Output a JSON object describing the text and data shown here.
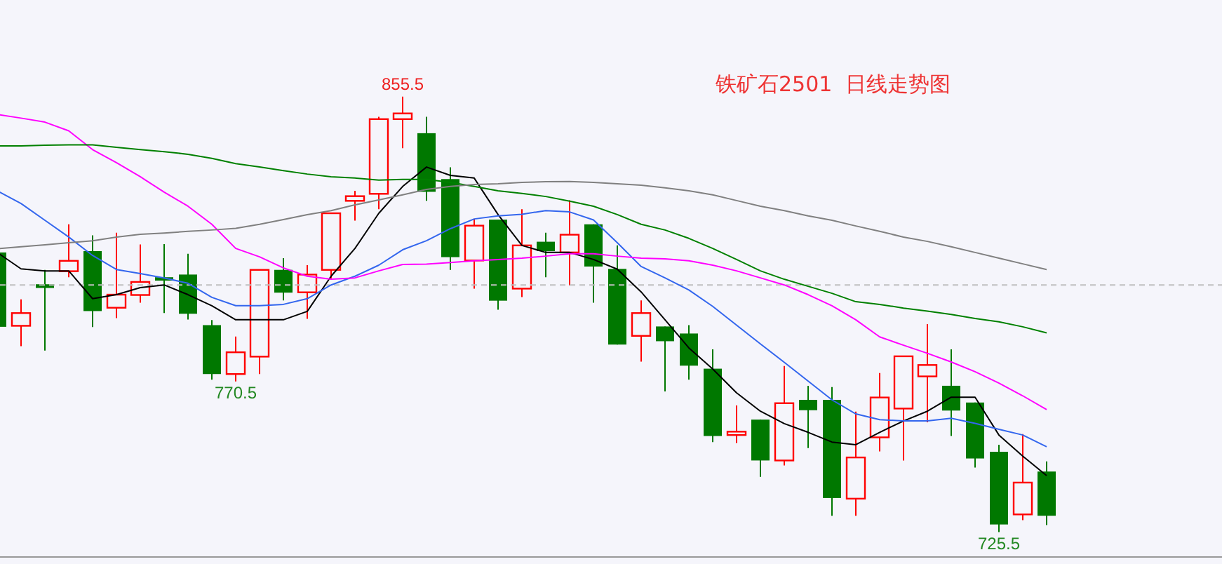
{
  "chart_data": {
    "type": "candlestick",
    "title": "铁矿石2501  日线走势图",
    "categories": [
      null,
      null,
      null,
      null,
      null,
      null,
      null,
      null,
      null,
      null,
      null,
      null,
      null,
      null,
      null,
      null,
      null,
      null,
      null,
      null,
      null,
      null,
      null,
      null,
      null,
      null,
      null,
      null,
      null,
      null,
      null,
      null,
      null,
      null,
      null,
      null,
      null,
      null,
      null,
      null,
      null,
      null,
      null,
      null,
      null
    ],
    "ohlc": [
      [
        809.0,
        809.8,
        786.0,
        786.8
      ],
      [
        787.1,
        795.0,
        781.0,
        790.9
      ],
      [
        799.5,
        803.8,
        779.7,
        798.4
      ],
      [
        803.4,
        817.4,
        801.6,
        806.5
      ],
      [
        809.4,
        814.1,
        786.7,
        791.5
      ],
      [
        792.5,
        814.9,
        789.4,
        796.4
      ],
      [
        796.3,
        811.4,
        794.0,
        800.2
      ],
      [
        801.6,
        811.5,
        790.9,
        800.6
      ],
      [
        802.4,
        808.6,
        789.0,
        790.7
      ],
      [
        787.3,
        788.8,
        771.0,
        772.7
      ],
      [
        772.7,
        783.9,
        770.5,
        779.2
      ],
      [
        777.9,
        803.8,
        772.7,
        803.8
      ],
      [
        803.8,
        807.3,
        794.7,
        797.0
      ],
      [
        797.1,
        805.2,
        789.2,
        802.4
      ],
      [
        803.8,
        820.7,
        801.3,
        820.7
      ],
      [
        824.4,
        827.4,
        818.5,
        825.8
      ],
      [
        826.5,
        849.5,
        821.9,
        848.8
      ],
      [
        848.8,
        855.5,
        840.1,
        850.5
      ],
      [
        844.6,
        849.5,
        824.4,
        827.1
      ],
      [
        830.9,
        834.4,
        803.8,
        807.6
      ],
      [
        806.6,
        819.0,
        798.2,
        817.0
      ],
      [
        818.8,
        818.8,
        791.9,
        794.6
      ],
      [
        798.2,
        821.9,
        795.7,
        811.1
      ],
      [
        812.2,
        814.9,
        801.6,
        809.4
      ],
      [
        809.0,
        824.6,
        799.2,
        814.3
      ],
      [
        817.4,
        817.4,
        794.0,
        804.8
      ],
      [
        804.1,
        811.1,
        781.5,
        781.5
      ],
      [
        784.1,
        794.7,
        776.4,
        790.9
      ],
      [
        786.9,
        786.9,
        767.5,
        782.5
      ],
      [
        784.8,
        787.3,
        771.0,
        775.2
      ],
      [
        774.3,
        780.1,
        752.4,
        754.2
      ],
      [
        754.5,
        763.3,
        752.1,
        755.5
      ],
      [
        759.1,
        759.1,
        742.0,
        746.9
      ],
      [
        746.9,
        775.1,
        745.4,
        764.0
      ],
      [
        765.0,
        769.2,
        750.6,
        761.9
      ],
      [
        765.0,
        768.8,
        730.4,
        735.7
      ],
      [
        735.5,
        761.5,
        730.4,
        747.8
      ],
      [
        753.8,
        773.0,
        749.6,
        765.7
      ],
      [
        762.4,
        778.0,
        746.9,
        778.0
      ],
      [
        772.0,
        787.6,
        758.3,
        775.4
      ],
      [
        769.2,
        780.1,
        754.2,
        761.8
      ],
      [
        764.2,
        764.2,
        744.8,
        747.5
      ],
      [
        749.5,
        751.6,
        725.5,
        727.8
      ],
      [
        730.8,
        754.8,
        729.1,
        740.3
      ],
      [
        743.6,
        746.6,
        727.6,
        730.4
      ]
    ],
    "colors": [
      "#007800",
      "#ff0000",
      "#007800",
      "#ff0000",
      "#007800",
      "#ff0000",
      "#ff0000",
      "#007800",
      "#007800",
      "#007800",
      "#ff0000",
      "#ff0000",
      "#007800",
      "#ff0000",
      "#ff0000",
      "#ff0000",
      "#ff0000",
      "#ff0000",
      "#007800",
      "#007800",
      "#ff0000",
      "#007800",
      "#ff0000",
      "#007800",
      "#ff0000",
      "#007800",
      "#007800",
      "#ff0000",
      "#007800",
      "#007800",
      "#007800",
      "#ff0000",
      "#007800",
      "#ff0000",
      "#007800",
      "#007800",
      "#ff0000",
      "#ff0000",
      "#ff0000",
      "#ff0000",
      "#007800",
      "#007800",
      "#007800",
      "#ff0000",
      "#007800"
    ],
    "series": [
      {
        "type": "line",
        "color": "#000000",
        "values": [
          809.0,
          804.1,
          803.5,
          803.5,
          795.2,
          796.4,
          798.5,
          799.3,
          796.4,
          793.1,
          788.9,
          788.9,
          788.9,
          791.4,
          801.9,
          810.2,
          820.7,
          828.7,
          834.5,
          832.0,
          831.2,
          820.3,
          811.1,
          809.0,
          809.0,
          806.9,
          804.0,
          797.2,
          788.9,
          780.5,
          774.2,
          767.1,
          761.6,
          757.9,
          755.3,
          752.4,
          751.6,
          755.3,
          758.7,
          761.6,
          765.8,
          765.8,
          754.5,
          748.2,
          742.4
        ]
      },
      {
        "type": "line",
        "color": "#3366ee",
        "values": [
          827.4,
          823.6,
          818.6,
          813.6,
          808.1,
          803.9,
          802.7,
          801.4,
          799.8,
          795.6,
          793.1,
          793.1,
          793.5,
          795.2,
          799.3,
          801.9,
          805.2,
          809.8,
          812.5,
          816.1,
          819.0,
          819.9,
          820.4,
          821.5,
          821.1,
          818.7,
          811.9,
          804.8,
          801.4,
          797.8,
          792.9,
          787.3,
          781.7,
          776.2,
          770.6,
          765.0,
          760.8,
          759.1,
          758.7,
          758.7,
          759.5,
          758.0,
          756.2,
          754.5,
          751.0
        ]
      },
      {
        "type": "line",
        "color": "#ff00ff",
        "values": [
          850.2,
          849.1,
          847.9,
          845.3,
          839.7,
          835.8,
          831.6,
          827.0,
          822.8,
          817.4,
          810.2,
          807.7,
          804.4,
          801.9,
          801.0,
          801.4,
          803.5,
          805.4,
          805.5,
          806.0,
          806.5,
          806.9,
          807.3,
          807.9,
          808.6,
          808.6,
          807.9,
          807.3,
          807.1,
          806.5,
          805.2,
          803.5,
          801.4,
          799.3,
          796.4,
          793.1,
          788.9,
          783.8,
          781.3,
          778.9,
          776.3,
          773.4,
          770.0,
          766.2,
          762.1
        ]
      },
      {
        "type": "line",
        "color": "#008000",
        "values": [
          840.8,
          840.8,
          841.0,
          841.1,
          841.1,
          840.4,
          839.7,
          839.1,
          838.3,
          837.1,
          835.5,
          834.5,
          833.4,
          832.4,
          831.6,
          831.2,
          830.6,
          830.8,
          830.8,
          829.9,
          828.7,
          827.4,
          826.6,
          825.7,
          824.3,
          822.8,
          820.3,
          817.4,
          815.7,
          813.2,
          810.2,
          806.9,
          803.5,
          801.0,
          798.9,
          796.8,
          794.3,
          793.5,
          792.4,
          791.5,
          790.5,
          789.3,
          788.3,
          786.8,
          785.0
        ]
      },
      {
        "type": "line",
        "color": "#808080",
        "values": [
          810.1,
          810.7,
          811.3,
          811.9,
          812.5,
          813.6,
          814.4,
          814.8,
          815.3,
          815.7,
          816.2,
          817.4,
          818.8,
          820.3,
          821.5,
          823.2,
          824.7,
          826.2,
          827.8,
          828.7,
          829.3,
          829.5,
          829.9,
          830.1,
          830.2,
          829.9,
          829.5,
          829.1,
          828.3,
          827.4,
          826.2,
          824.5,
          822.8,
          821.5,
          819.9,
          818.6,
          816.9,
          815.3,
          813.6,
          812.3,
          810.7,
          809.0,
          807.3,
          805.6,
          803.9
        ]
      }
    ],
    "ref_lines": [
      {
        "axis": "y",
        "value": 799.3,
        "color": "#c0c0c0",
        "line_style": "dashed"
      }
    ],
    "annotations": [
      {
        "text": "855.5",
        "y": 855.5
      },
      {
        "text": "770.5",
        "y": 770.5
      },
      {
        "text": "725.5",
        "y": 725.5
      }
    ],
    "grid": false,
    "legend": false
  }
}
